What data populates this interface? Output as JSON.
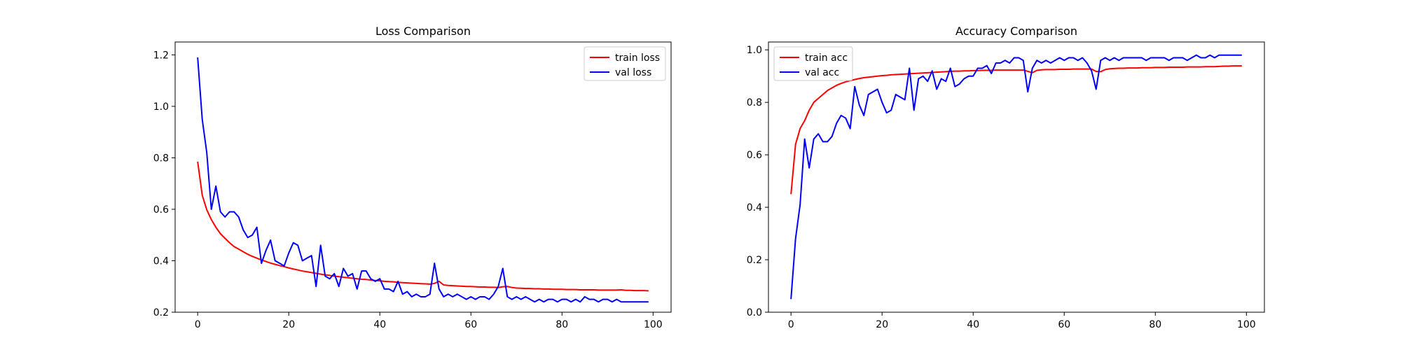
{
  "chart_data": [
    {
      "type": "line",
      "title": "Loss Comparison",
      "xlabel": "",
      "ylabel": "",
      "xlim": [
        -4.95,
        103.95
      ],
      "ylim": [
        0.2,
        1.25
      ],
      "xticks": [
        0,
        20,
        40,
        60,
        80,
        100
      ],
      "yticks": [
        0.2,
        0.4,
        0.6,
        0.8,
        1.0,
        1.2
      ],
      "ytick_labels": [
        "0.2",
        "0.4",
        "0.6",
        "0.8",
        "1.0",
        "1.2"
      ],
      "grid": false,
      "legend_position": "upper right",
      "series": [
        {
          "name": "train loss",
          "color": "#ff0000",
          "x_start": 0,
          "values": [
            0.785,
            0.655,
            0.598,
            0.56,
            0.53,
            0.505,
            0.487,
            0.47,
            0.455,
            0.445,
            0.435,
            0.425,
            0.417,
            0.41,
            0.403,
            0.397,
            0.391,
            0.386,
            0.381,
            0.377,
            0.372,
            0.368,
            0.364,
            0.36,
            0.357,
            0.354,
            0.351,
            0.348,
            0.345,
            0.343,
            0.34,
            0.338,
            0.336,
            0.334,
            0.332,
            0.33,
            0.328,
            0.327,
            0.325,
            0.323,
            0.322,
            0.32,
            0.319,
            0.318,
            0.316,
            0.315,
            0.314,
            0.313,
            0.312,
            0.311,
            0.31,
            0.309,
            0.312,
            0.32,
            0.306,
            0.304,
            0.303,
            0.302,
            0.301,
            0.3,
            0.3,
            0.299,
            0.298,
            0.298,
            0.297,
            0.297,
            0.296,
            0.299,
            0.3,
            0.296,
            0.294,
            0.293,
            0.292,
            0.292,
            0.291,
            0.291,
            0.29,
            0.29,
            0.289,
            0.289,
            0.289,
            0.288,
            0.288,
            0.288,
            0.287,
            0.287,
            0.287,
            0.287,
            0.286,
            0.286,
            0.286,
            0.286,
            0.286,
            0.287,
            0.285,
            0.285,
            0.284,
            0.284,
            0.284,
            0.283
          ]
        },
        {
          "name": "val loss",
          "color": "#0000ff",
          "x_start": 0,
          "values": [
            1.19,
            0.95,
            0.82,
            0.6,
            0.69,
            0.59,
            0.57,
            0.59,
            0.59,
            0.57,
            0.52,
            0.49,
            0.5,
            0.53,
            0.39,
            0.44,
            0.48,
            0.4,
            0.39,
            0.38,
            0.43,
            0.47,
            0.46,
            0.4,
            0.41,
            0.42,
            0.3,
            0.46,
            0.34,
            0.33,
            0.35,
            0.3,
            0.37,
            0.34,
            0.35,
            0.29,
            0.36,
            0.36,
            0.33,
            0.32,
            0.33,
            0.29,
            0.29,
            0.28,
            0.32,
            0.27,
            0.28,
            0.26,
            0.27,
            0.26,
            0.26,
            0.27,
            0.39,
            0.29,
            0.26,
            0.27,
            0.26,
            0.27,
            0.26,
            0.25,
            0.26,
            0.25,
            0.26,
            0.26,
            0.25,
            0.27,
            0.3,
            0.37,
            0.26,
            0.25,
            0.26,
            0.25,
            0.26,
            0.25,
            0.24,
            0.25,
            0.24,
            0.25,
            0.25,
            0.24,
            0.25,
            0.25,
            0.24,
            0.25,
            0.24,
            0.26,
            0.25,
            0.25,
            0.24,
            0.25,
            0.25,
            0.24,
            0.25,
            0.24,
            0.24,
            0.24,
            0.24,
            0.24,
            0.24,
            0.24
          ]
        }
      ]
    },
    {
      "type": "line",
      "title": "Accuracy Comparison",
      "xlabel": "",
      "ylabel": "",
      "xlim": [
        -4.95,
        103.95
      ],
      "ylim": [
        0.0,
        1.03
      ],
      "xticks": [
        0,
        20,
        40,
        60,
        80,
        100
      ],
      "yticks": [
        0.0,
        0.2,
        0.4,
        0.6,
        0.8,
        1.0
      ],
      "ytick_labels": [
        "0.0",
        "0.2",
        "0.4",
        "0.6",
        "0.8",
        "1.0"
      ],
      "grid": false,
      "legend_position": "upper left",
      "series": [
        {
          "name": "train acc",
          "color": "#ff0000",
          "x_start": 0,
          "values": [
            0.45,
            0.64,
            0.7,
            0.73,
            0.77,
            0.8,
            0.815,
            0.83,
            0.845,
            0.855,
            0.865,
            0.872,
            0.878,
            0.883,
            0.887,
            0.891,
            0.894,
            0.896,
            0.898,
            0.9,
            0.902,
            0.903,
            0.905,
            0.906,
            0.907,
            0.908,
            0.909,
            0.91,
            0.911,
            0.912,
            0.913,
            0.914,
            0.915,
            0.916,
            0.917,
            0.918,
            0.919,
            0.919,
            0.92,
            0.92,
            0.921,
            0.921,
            0.922,
            0.922,
            0.922,
            0.923,
            0.923,
            0.923,
            0.923,
            0.923,
            0.923,
            0.923,
            0.918,
            0.913,
            0.922,
            0.924,
            0.925,
            0.925,
            0.925,
            0.926,
            0.926,
            0.926,
            0.927,
            0.927,
            0.927,
            0.927,
            0.927,
            0.918,
            0.917,
            0.925,
            0.928,
            0.929,
            0.93,
            0.93,
            0.931,
            0.931,
            0.931,
            0.932,
            0.932,
            0.932,
            0.933,
            0.933,
            0.933,
            0.934,
            0.934,
            0.934,
            0.934,
            0.935,
            0.935,
            0.935,
            0.935,
            0.936,
            0.936,
            0.936,
            0.937,
            0.938,
            0.938,
            0.939,
            0.939,
            0.939
          ]
        },
        {
          "name": "val acc",
          "color": "#0000ff",
          "x_start": 0,
          "values": [
            0.05,
            0.28,
            0.41,
            0.66,
            0.55,
            0.66,
            0.68,
            0.65,
            0.65,
            0.67,
            0.72,
            0.75,
            0.74,
            0.7,
            0.86,
            0.79,
            0.75,
            0.83,
            0.84,
            0.85,
            0.8,
            0.76,
            0.77,
            0.83,
            0.82,
            0.81,
            0.93,
            0.77,
            0.89,
            0.9,
            0.88,
            0.92,
            0.85,
            0.89,
            0.88,
            0.93,
            0.86,
            0.87,
            0.89,
            0.9,
            0.9,
            0.93,
            0.93,
            0.94,
            0.91,
            0.95,
            0.95,
            0.96,
            0.95,
            0.97,
            0.97,
            0.96,
            0.84,
            0.93,
            0.96,
            0.95,
            0.96,
            0.95,
            0.96,
            0.97,
            0.96,
            0.97,
            0.97,
            0.96,
            0.97,
            0.95,
            0.92,
            0.85,
            0.96,
            0.97,
            0.96,
            0.97,
            0.96,
            0.97,
            0.97,
            0.97,
            0.97,
            0.97,
            0.96,
            0.97,
            0.97,
            0.97,
            0.97,
            0.96,
            0.97,
            0.97,
            0.97,
            0.96,
            0.97,
            0.98,
            0.97,
            0.97,
            0.98,
            0.97,
            0.98,
            0.98,
            0.98,
            0.98,
            0.98,
            0.98
          ]
        }
      ]
    }
  ]
}
